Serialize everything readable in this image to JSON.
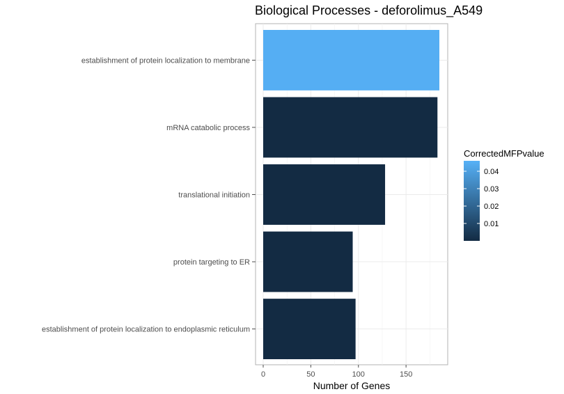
{
  "chart_data": {
    "type": "bar",
    "orientation": "horizontal",
    "title": "Biological Processes - deforolimus_A549",
    "xlabel": "Number of Genes",
    "ylabel": "",
    "xlim": [
      0,
      185
    ],
    "xticks": [
      0,
      50,
      100,
      150
    ],
    "grid": true,
    "categories": [
      "establishment of protein localization to membrane",
      "mRNA catabolic process",
      "translational initiation",
      "protein targeting to ER",
      "establishment of protein localization to endoplasmic reticulum"
    ],
    "values": [
      185,
      183,
      128,
      94,
      97
    ],
    "color_values": [
      0.045,
      0.0,
      0.0,
      0.0,
      0.0
    ],
    "legend": {
      "title": "CorrectedMFPvalue",
      "placement": "right",
      "range": [
        0,
        0.046
      ],
      "breaks": [
        0.04,
        0.03,
        0.02,
        0.01
      ],
      "break_labels": [
        "0.04",
        "0.03",
        "0.02",
        "0.01"
      ],
      "color_low": "#132B43",
      "color_high": "#56B1F7"
    }
  }
}
